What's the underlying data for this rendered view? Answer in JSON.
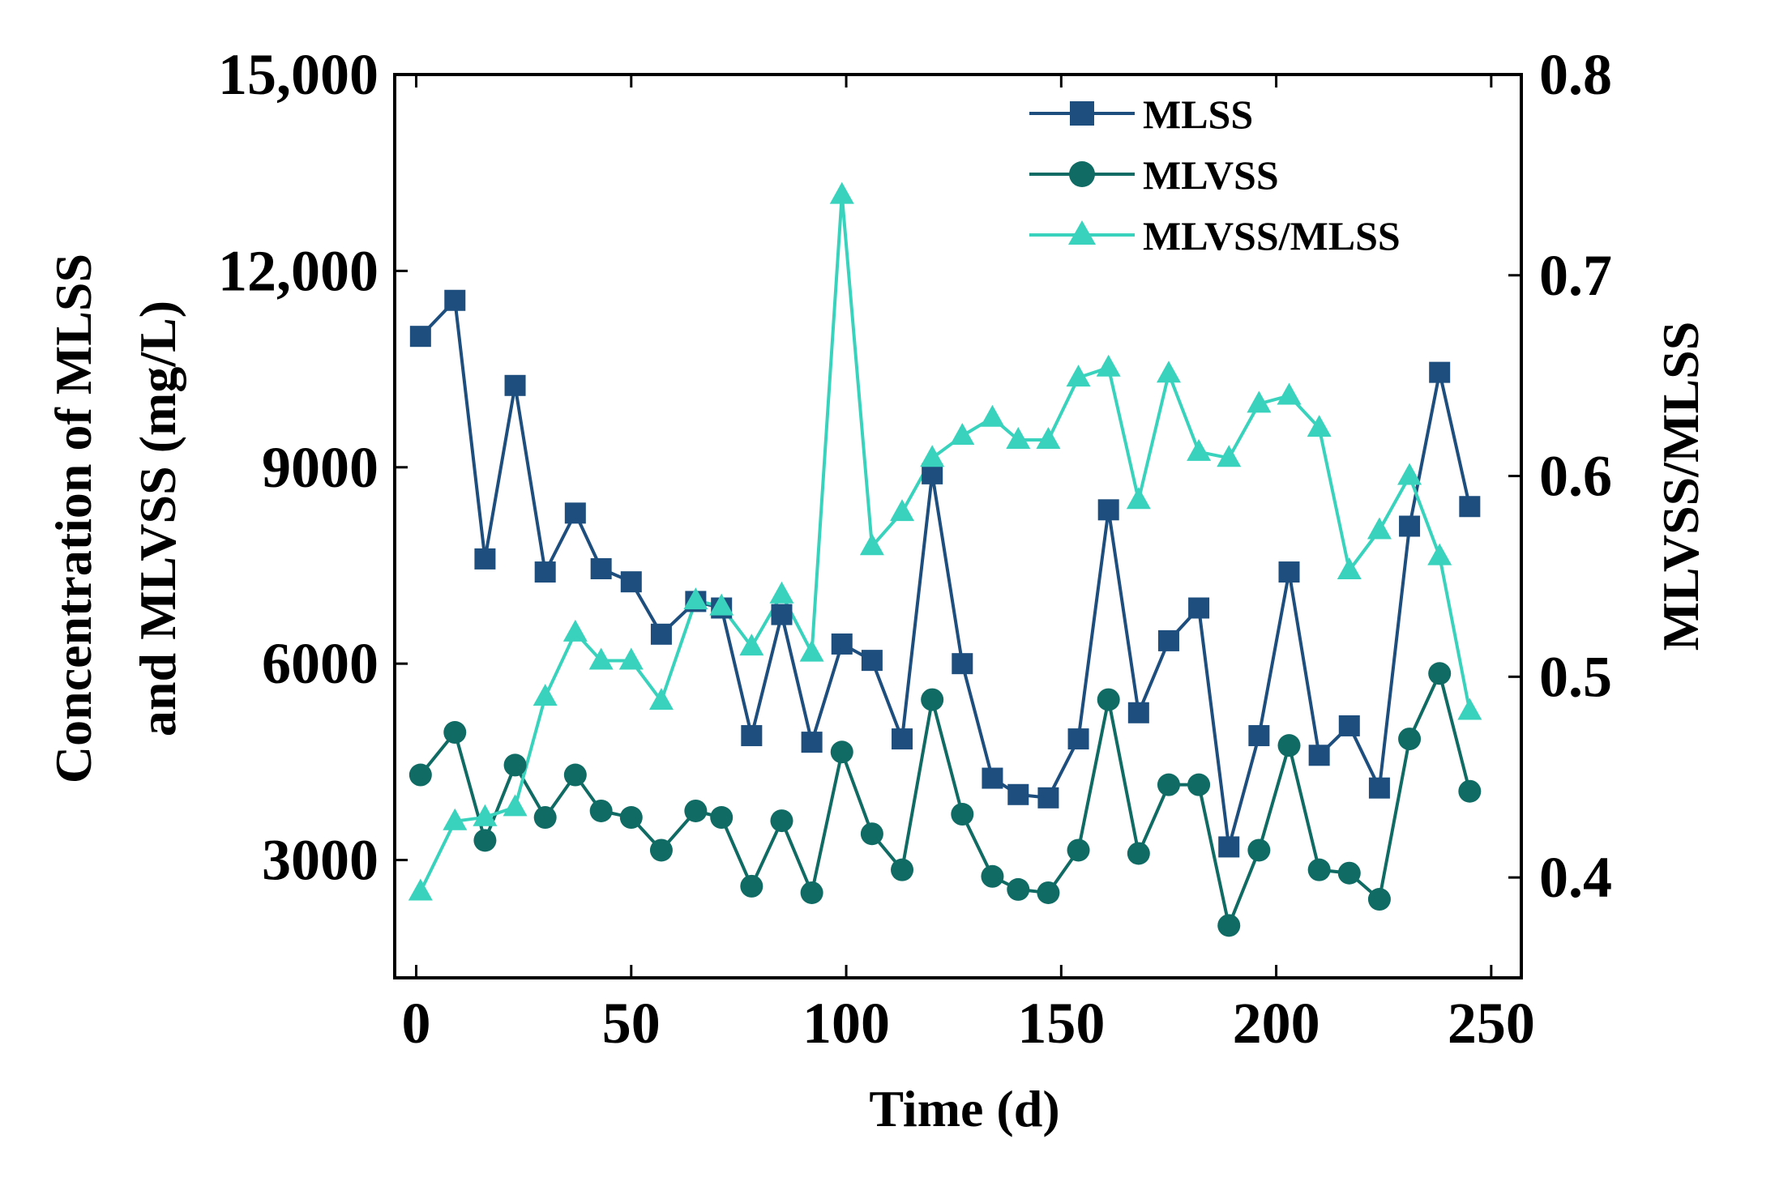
{
  "chart_data": {
    "type": "line",
    "xlabel": "Time (d)",
    "ylabel_lines": [
      "Concentration of MLSS",
      "and MLVSS (mg/L)"
    ],
    "y2label": "MLVSS/MLSS",
    "xlim": [
      -5,
      257
    ],
    "ylim": [
      1200,
      15000
    ],
    "y2lim": [
      0.35,
      0.8
    ],
    "x_ticks": [
      0,
      50,
      100,
      150,
      200,
      250
    ],
    "x_tick_labels": [
      "0",
      "50",
      "100",
      "150",
      "200",
      "250"
    ],
    "y_ticks": [
      3000,
      6000,
      9000,
      12000,
      15000
    ],
    "y_tick_labels": [
      "3000",
      "6000",
      "9000",
      "12,000",
      "15,000"
    ],
    "y2_ticks": [
      0.4,
      0.5,
      0.6,
      0.7,
      0.8
    ],
    "y2_tick_labels": [
      "0.4",
      "0.5",
      "0.6",
      "0.7",
      "0.8"
    ],
    "legend_position": "top-right",
    "x": [
      1,
      9,
      16,
      23,
      30,
      37,
      43,
      50,
      57,
      65,
      71,
      78,
      85,
      92,
      99,
      106,
      113,
      120,
      127,
      134,
      140,
      147,
      154,
      161,
      168,
      175,
      182,
      189,
      196,
      203,
      210,
      217,
      224,
      231,
      238,
      245
    ],
    "series": [
      {
        "name": "MLSS",
        "axis": "left",
        "marker": "square",
        "color": "#1d4e7e",
        "values": [
          11000,
          11550,
          7600,
          10250,
          7400,
          8300,
          7450,
          7250,
          6450,
          6950,
          6850,
          4900,
          6750,
          4800,
          6300,
          6050,
          4850,
          8900,
          6000,
          4250,
          4000,
          3950,
          4850,
          8350,
          5250,
          6350,
          6850,
          3200,
          4900,
          7400,
          4600,
          5050,
          4100,
          8100,
          10450,
          8400
        ]
      },
      {
        "name": "MLVSS",
        "axis": "left",
        "marker": "circle",
        "color": "#0f6b63",
        "values": [
          4300,
          4950,
          3300,
          4450,
          3650,
          4300,
          3750,
          3650,
          3150,
          3750,
          3650,
          2600,
          3600,
          2500,
          4650,
          3400,
          2850,
          5450,
          3700,
          2750,
          2550,
          2500,
          3150,
          5450,
          3100,
          4150,
          4150,
          2000,
          3150,
          4750,
          2850,
          2800,
          2400,
          4850,
          5850,
          4050
        ]
      },
      {
        "name": "MLVSS/MLSS",
        "axis": "right",
        "marker": "triangle",
        "color": "#39d3bd",
        "values": [
          0.393,
          0.428,
          0.43,
          0.435,
          0.49,
          0.522,
          0.508,
          0.508,
          0.488,
          0.538,
          0.535,
          0.515,
          0.541,
          0.512,
          0.74,
          0.565,
          0.582,
          0.609,
          0.62,
          0.629,
          0.618,
          0.618,
          0.649,
          0.654,
          0.588,
          0.651,
          0.612,
          0.609,
          0.636,
          0.64,
          0.624,
          0.553,
          0.573,
          0.6,
          0.56,
          0.483
        ]
      }
    ]
  }
}
